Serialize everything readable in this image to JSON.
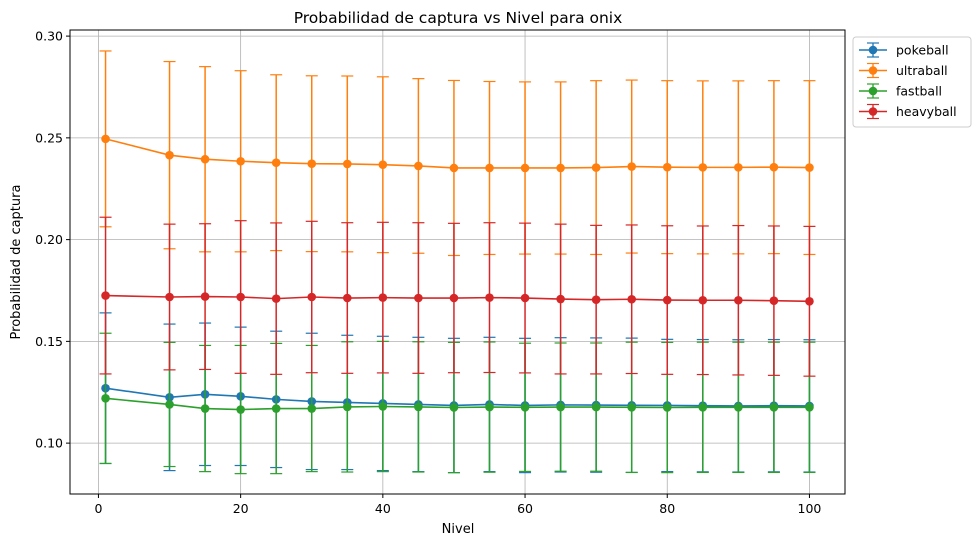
{
  "chart_data": {
    "type": "line",
    "title": "Probabilidad de captura vs Nivel para onix",
    "xlabel": "Nivel",
    "ylabel": "Probabilidad de captura",
    "xlim": [
      -4,
      105
    ],
    "ylim": [
      0.075,
      0.303
    ],
    "xticks": [
      0,
      20,
      40,
      60,
      80,
      100
    ],
    "yticks": [
      0.1,
      0.15,
      0.2,
      0.25,
      0.3
    ],
    "ytick_labels": [
      "0.10",
      "0.15",
      "0.20",
      "0.25",
      "0.30"
    ],
    "grid": true,
    "legend_position": "outside-top-right",
    "x": [
      1,
      10,
      15,
      20,
      25,
      30,
      35,
      40,
      45,
      50,
      55,
      60,
      65,
      70,
      75,
      80,
      85,
      90,
      95,
      100
    ],
    "series": [
      {
        "name": "pokeball",
        "color": "#1f77b4",
        "values": [
          0.127,
          0.1225,
          0.124,
          0.123,
          0.1215,
          0.1205,
          0.12,
          0.1195,
          0.119,
          0.1185,
          0.119,
          0.1185,
          0.1188,
          0.1187,
          0.1186,
          0.1185,
          0.1184,
          0.1183,
          0.1184,
          0.1183
        ],
        "errors": [
          0.037,
          0.036,
          0.035,
          0.034,
          0.0335,
          0.0335,
          0.033,
          0.033,
          0.033,
          0.033,
          0.033,
          0.033,
          0.033,
          0.033,
          0.033,
          0.0325,
          0.0325,
          0.0325,
          0.0325,
          0.0325
        ]
      },
      {
        "name": "ultraball",
        "color": "#ff7f0e",
        "values": [
          0.2495,
          0.2415,
          0.2395,
          0.2385,
          0.2378,
          0.2373,
          0.2372,
          0.2368,
          0.2362,
          0.2352,
          0.2352,
          0.2352,
          0.2352,
          0.2354,
          0.2359,
          0.2356,
          0.2355,
          0.2355,
          0.2356,
          0.2354
        ],
        "errors": [
          0.0432,
          0.046,
          0.0455,
          0.0445,
          0.0432,
          0.0432,
          0.0432,
          0.0432,
          0.0429,
          0.043,
          0.0425,
          0.0423,
          0.0423,
          0.0427,
          0.0425,
          0.0425,
          0.0425,
          0.0425,
          0.0425,
          0.0427
        ]
      },
      {
        "name": "fastball",
        "color": "#2ca02c",
        "values": [
          0.122,
          0.119,
          0.117,
          0.1165,
          0.117,
          0.117,
          0.1178,
          0.118,
          0.1178,
          0.1175,
          0.1177,
          0.1176,
          0.1177,
          0.1177,
          0.1176,
          0.1175,
          0.1176,
          0.1176,
          0.1176,
          0.1176
        ],
        "errors": [
          0.032,
          0.0305,
          0.031,
          0.0315,
          0.032,
          0.031,
          0.032,
          0.032,
          0.032,
          0.032,
          0.032,
          0.0315,
          0.0315,
          0.0315,
          0.032,
          0.032,
          0.032,
          0.032,
          0.032,
          0.032
        ]
      },
      {
        "name": "heavyball",
        "color": "#d62728",
        "values": [
          0.1725,
          0.1718,
          0.172,
          0.1718,
          0.171,
          0.1718,
          0.1713,
          0.1715,
          0.1713,
          0.1713,
          0.1715,
          0.1713,
          0.1708,
          0.1705,
          0.1707,
          0.1703,
          0.1702,
          0.1702,
          0.17,
          0.1697
        ],
        "errors": [
          0.0385,
          0.0358,
          0.0358,
          0.0375,
          0.0372,
          0.0372,
          0.037,
          0.037,
          0.037,
          0.0367,
          0.0368,
          0.0368,
          0.0368,
          0.0365,
          0.0365,
          0.0365,
          0.0365,
          0.0367,
          0.0367,
          0.0368
        ]
      }
    ]
  }
}
